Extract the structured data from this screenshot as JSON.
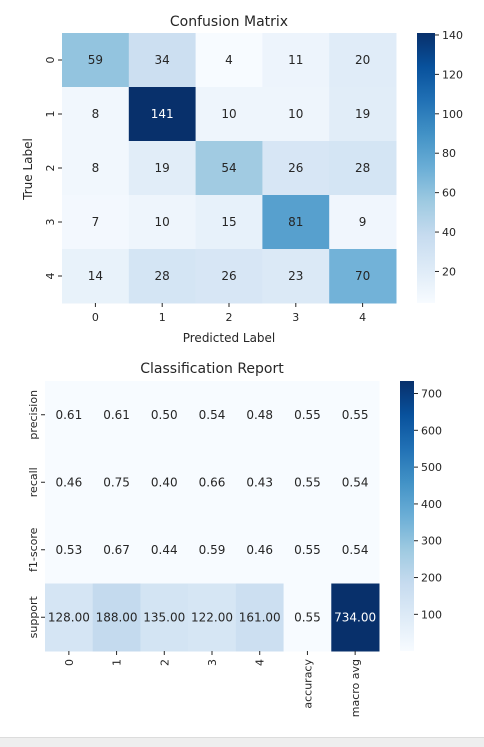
{
  "chart_data": [
    {
      "type": "heatmap",
      "title": "Confusion Matrix",
      "xlabel": "Predicted Label",
      "ylabel": "True Label",
      "x_categories": [
        "0",
        "1",
        "2",
        "3",
        "4"
      ],
      "y_categories": [
        "0",
        "1",
        "2",
        "3",
        "4"
      ],
      "values": [
        [
          59,
          34,
          4,
          11,
          20
        ],
        [
          8,
          141,
          10,
          10,
          19
        ],
        [
          8,
          19,
          54,
          26,
          28
        ],
        [
          7,
          10,
          15,
          81,
          9
        ],
        [
          14,
          28,
          26,
          23,
          70
        ]
      ],
      "labels": [
        [
          "59",
          "34",
          "4",
          "11",
          "20"
        ],
        [
          "8",
          "141",
          "10",
          "10",
          "19"
        ],
        [
          "8",
          "19",
          "54",
          "26",
          "28"
        ],
        [
          "7",
          "10",
          "15",
          "81",
          "9"
        ],
        [
          "14",
          "28",
          "26",
          "23",
          "70"
        ]
      ],
      "colormap": "Blues",
      "vmin": 4,
      "vmax": 141,
      "colorbar_ticks": [
        20,
        40,
        60,
        80,
        100,
        120,
        140
      ],
      "colorbar_tick_labels": [
        "20",
        "40",
        "60",
        "80",
        "100",
        "120",
        "140"
      ]
    },
    {
      "type": "heatmap",
      "title": "Classification Report",
      "xlabel": "",
      "ylabel": "",
      "x_categories": [
        "0",
        "1",
        "2",
        "3",
        "4",
        "accuracy",
        "macro avg"
      ],
      "y_categories": [
        "precision",
        "recall",
        "f1-score",
        "support"
      ],
      "values": [
        [
          0.61,
          0.61,
          0.5,
          0.54,
          0.48,
          0.55,
          0.55
        ],
        [
          0.46,
          0.75,
          0.4,
          0.66,
          0.43,
          0.55,
          0.54
        ],
        [
          0.53,
          0.67,
          0.44,
          0.59,
          0.46,
          0.55,
          0.54
        ],
        [
          128.0,
          188.0,
          135.0,
          122.0,
          161.0,
          0.55,
          734.0
        ]
      ],
      "labels": [
        [
          "0.61",
          "0.61",
          "0.50",
          "0.54",
          "0.48",
          "0.55",
          "0.55"
        ],
        [
          "0.46",
          "0.75",
          "0.40",
          "0.66",
          "0.43",
          "0.55",
          "0.54"
        ],
        [
          "0.53",
          "0.67",
          "0.44",
          "0.59",
          "0.46",
          "0.55",
          "0.54"
        ],
        [
          "128.00",
          "188.00",
          "135.00",
          "122.00",
          "161.00",
          "0.55",
          "734.00"
        ]
      ],
      "colormap": "Blues",
      "vmin": 0.4,
      "vmax": 734.0,
      "colorbar_ticks": [
        100,
        200,
        300,
        400,
        500,
        600,
        700
      ],
      "colorbar_tick_labels": [
        "100",
        "200",
        "300",
        "400",
        "500",
        "600",
        "700"
      ]
    }
  ],
  "colors": {
    "blues_low": "#f7fbff",
    "blues_high": "#08306b",
    "text_dark": "#262626",
    "text_light": "#ffffff"
  }
}
